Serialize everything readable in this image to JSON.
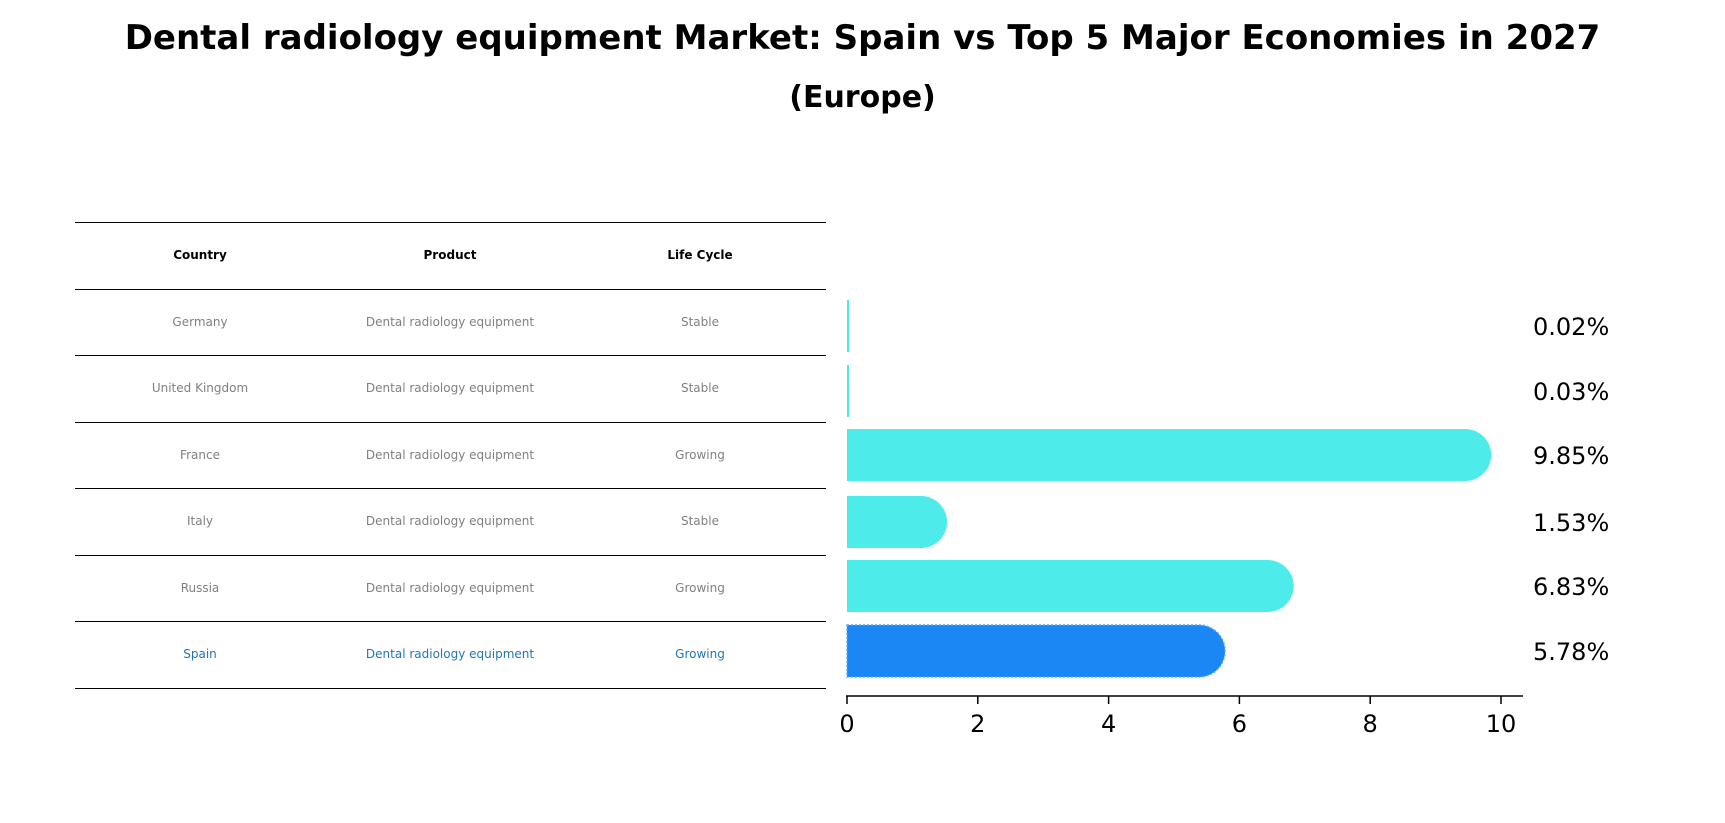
{
  "title": "Dental radiology equipment Market: Spain vs Top 5 Major Economies in 2027",
  "subtitle": "(Europe)",
  "table": {
    "headers": [
      "Country",
      "Product",
      "Life Cycle"
    ],
    "rows": [
      [
        "Germany",
        "Dental radiology equipment",
        "Stable"
      ],
      [
        "United Kingdom",
        "Dental radiology equipment",
        "Stable"
      ],
      [
        "France",
        "Dental radiology equipment",
        "Growing"
      ],
      [
        "Italy",
        "Dental radiology equipment",
        "Stable"
      ],
      [
        "Russia",
        "Dental radiology equipment",
        "Growing"
      ],
      [
        "Spain",
        "Dental radiology equipment",
        "Growing"
      ]
    ],
    "highlight_row": "Spain"
  },
  "colors": {
    "bar": "#4deceb",
    "highlight": "#1a87f5",
    "table_text": "#808080",
    "highlight_text": "#1f77b4"
  },
  "chart_data": {
    "type": "bar",
    "orientation": "horizontal",
    "categories": [
      "Germany",
      "United Kingdom",
      "France",
      "Italy",
      "Russia",
      "Spain"
    ],
    "values": [
      0.02,
      0.03,
      9.85,
      1.53,
      6.83,
      5.78
    ],
    "value_labels": [
      "0.02%",
      "0.03%",
      "9.85%",
      "1.53%",
      "6.83%",
      "5.78%"
    ],
    "highlight": "Spain",
    "xlim": [
      0,
      10.3
    ],
    "xticks": [
      0,
      2,
      4,
      6,
      8,
      10
    ],
    "xlabel": "",
    "ylabel": "",
    "grid": false
  }
}
